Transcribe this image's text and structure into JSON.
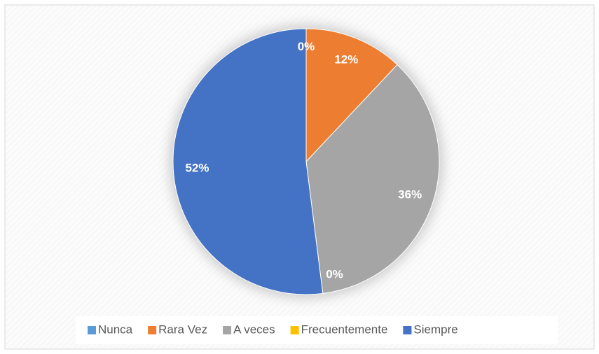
{
  "chart_data": {
    "type": "pie",
    "categories": [
      "Nunca",
      "Rara Vez",
      "A veces",
      "Frecuentemente",
      "Siempre"
    ],
    "values": [
      0,
      12,
      36,
      0,
      52
    ],
    "value_labels": [
      "0%",
      "12%",
      "36%",
      "0%",
      "52%"
    ],
    "colors": [
      "#5b9bd5",
      "#ed7d31",
      "#a5a5a5",
      "#ffc000",
      "#4472c4"
    ],
    "legend": "bottom"
  }
}
